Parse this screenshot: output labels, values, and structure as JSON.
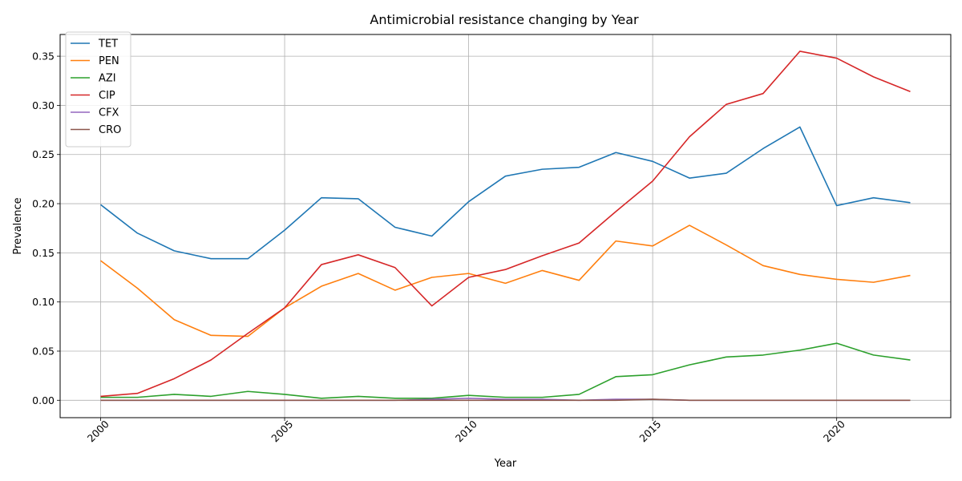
{
  "chart_data": {
    "type": "line",
    "title": "Antimicrobial resistance changing by Year",
    "xlabel": "Year",
    "ylabel": "Prevalence",
    "x": [
      2000,
      2001,
      2002,
      2003,
      2004,
      2005,
      2006,
      2007,
      2008,
      2009,
      2010,
      2011,
      2012,
      2013,
      2014,
      2015,
      2016,
      2017,
      2018,
      2019,
      2020,
      2021,
      2022
    ],
    "xlim": [
      1998.9,
      2023.1
    ],
    "ylim": [
      -0.0177,
      0.3721
    ],
    "x_ticks": [
      2000,
      2005,
      2010,
      2015,
      2020
    ],
    "x_tick_labels": [
      "2000",
      "2005",
      "2010",
      "2015",
      "2020"
    ],
    "y_ticks": [
      0.0,
      0.05,
      0.1,
      0.15,
      0.2,
      0.25,
      0.3,
      0.35
    ],
    "y_tick_labels": [
      "0.00",
      "0.05",
      "0.10",
      "0.15",
      "0.20",
      "0.25",
      "0.30",
      "0.35"
    ],
    "grid": true,
    "legend_position": "top-left",
    "series": [
      {
        "name": "TET",
        "color": "#1f77b4",
        "values": [
          0.199,
          0.17,
          0.152,
          0.144,
          0.144,
          0.173,
          0.206,
          0.205,
          0.176,
          0.167,
          0.202,
          0.228,
          0.235,
          0.237,
          0.252,
          0.243,
          0.226,
          0.231,
          0.256,
          0.278,
          0.198,
          0.206,
          0.201
        ]
      },
      {
        "name": "PEN",
        "color": "#ff7f0e",
        "values": [
          0.142,
          0.114,
          0.082,
          0.066,
          0.065,
          0.094,
          0.116,
          0.129,
          0.112,
          0.125,
          0.129,
          0.119,
          0.132,
          0.122,
          0.162,
          0.157,
          0.178,
          0.158,
          0.137,
          0.128,
          0.123,
          0.12,
          0.127
        ]
      },
      {
        "name": "AZI",
        "color": "#2ca02c",
        "values": [
          0.003,
          0.003,
          0.006,
          0.004,
          0.009,
          0.006,
          0.002,
          0.004,
          0.002,
          0.002,
          0.005,
          0.003,
          0.003,
          0.006,
          0.024,
          0.026,
          0.036,
          0.044,
          0.046,
          0.051,
          0.058,
          0.046,
          0.041
        ]
      },
      {
        "name": "CIP",
        "color": "#d62728",
        "values": [
          0.004,
          0.007,
          0.022,
          0.041,
          0.068,
          0.094,
          0.138,
          0.148,
          0.135,
          0.096,
          0.125,
          0.133,
          0.147,
          0.16,
          0.192,
          0.223,
          0.268,
          0.301,
          0.312,
          0.355,
          0.348,
          0.329,
          0.314
        ]
      },
      {
        "name": "CFX",
        "color": "#9467bd",
        "values": [
          0.0,
          0.0,
          0.0,
          0.0,
          0.0,
          0.0,
          0.0,
          0.0,
          0.0,
          0.001,
          0.002,
          0.001,
          0.001,
          0.0,
          0.001,
          0.001,
          0.0,
          0.0,
          0.0,
          0.0,
          0.0,
          0.0,
          0.0
        ]
      },
      {
        "name": "CRO",
        "color": "#8c564b",
        "values": [
          0.0,
          0.0,
          0.0,
          0.0,
          0.0,
          0.0,
          0.0,
          0.0,
          0.0,
          0.0,
          0.0,
          0.0,
          0.0,
          0.0,
          0.0,
          0.001,
          0.0,
          0.0,
          0.0,
          0.0,
          0.0,
          0.0,
          0.0
        ]
      }
    ]
  }
}
